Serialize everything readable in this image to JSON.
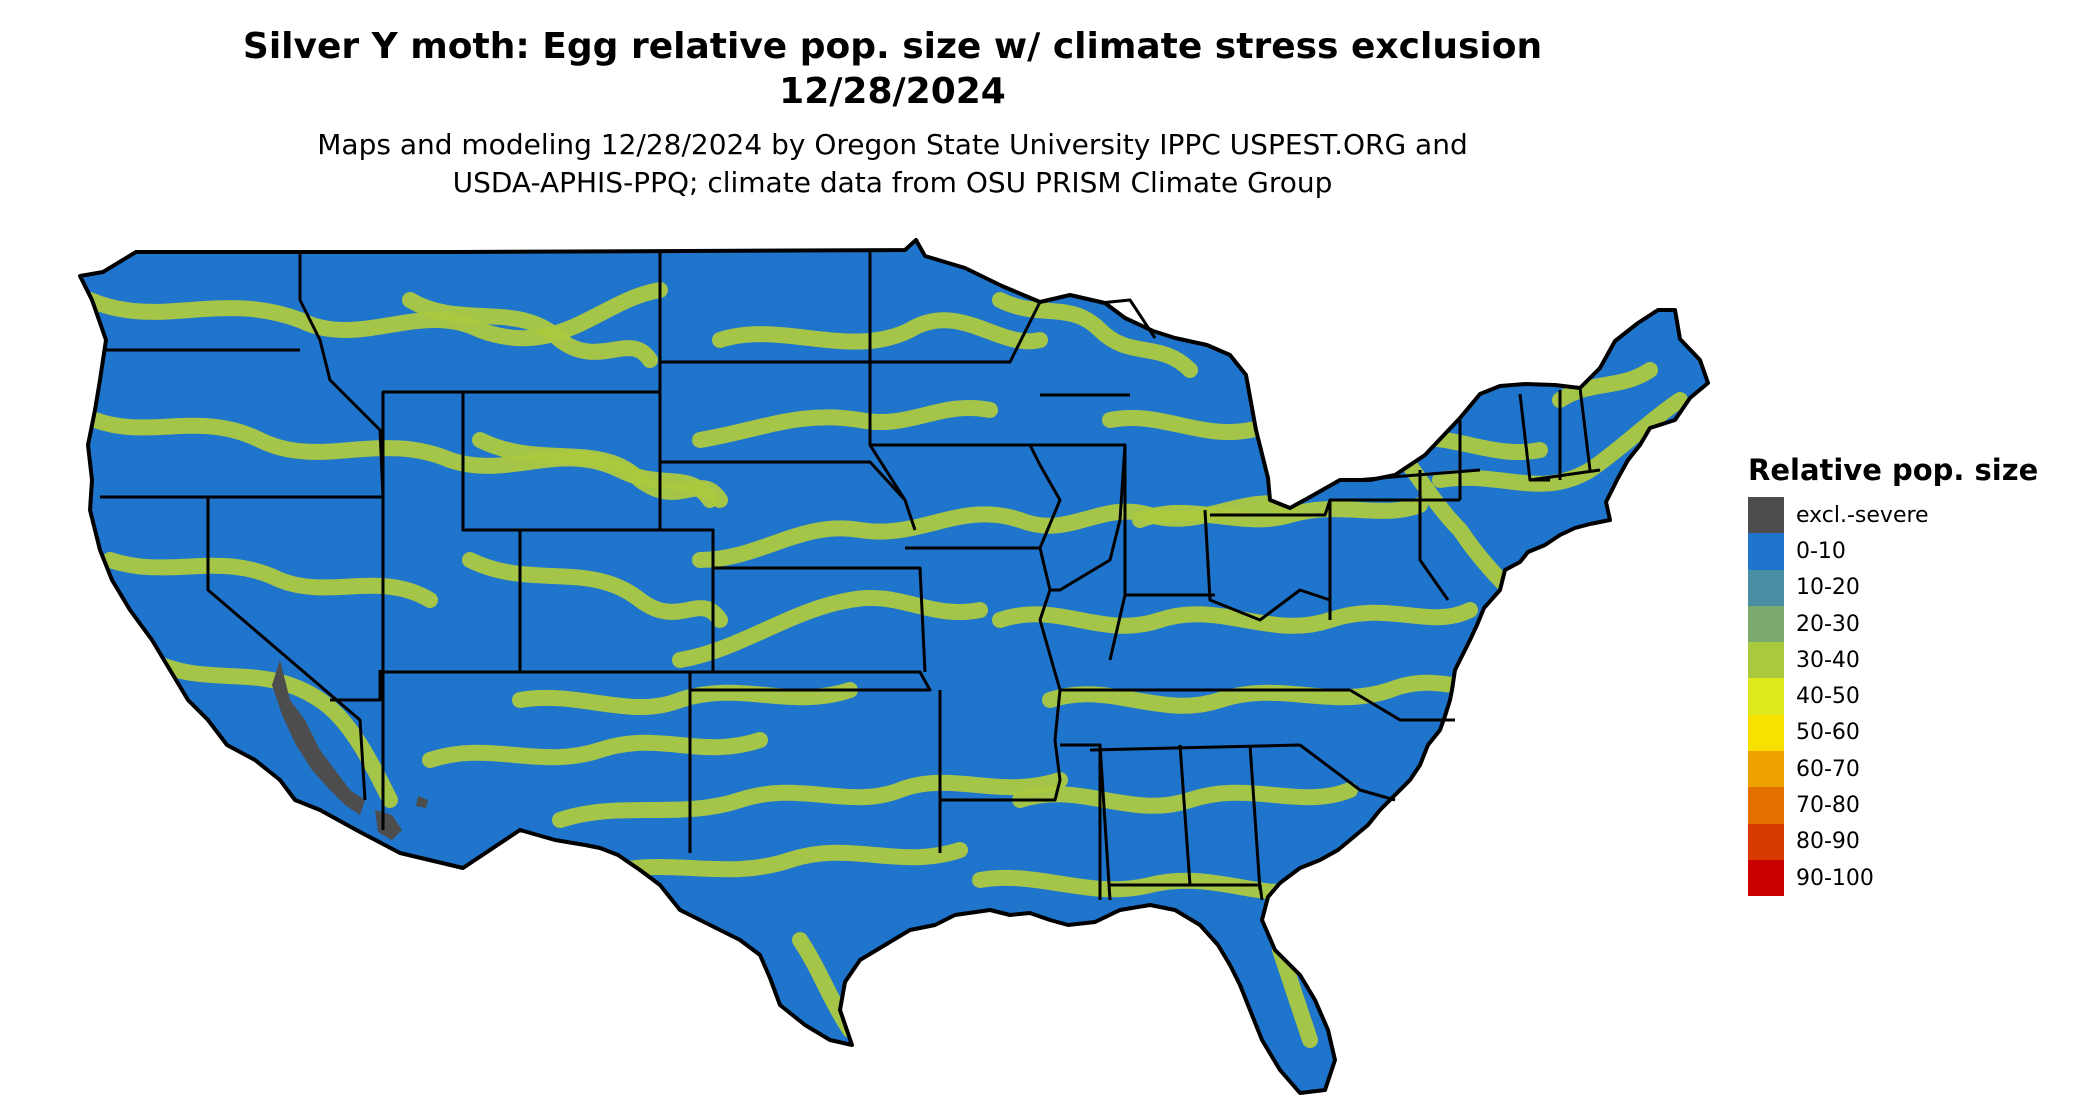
{
  "header": {
    "title_line1": "Silver Y moth: Egg relative pop. size w/ climate stress exclusion",
    "title_line2": "12/28/2024",
    "subtitle_line1": "Maps and modeling 12/28/2024 by Oregon State University IPPC USPEST.ORG and",
    "subtitle_line2": "USDA-APHIS-PPQ; climate data from OSU PRISM Climate Group"
  },
  "map": {
    "region": "Contiguous United States",
    "base_color": "#1f74cc",
    "band_color": "#acc93f",
    "exclusion_color": "#4d4d4d",
    "border_color": "#000000"
  },
  "legend": {
    "title": "Relative pop. size",
    "items": [
      {
        "label": "excl.-severe",
        "color": "#4d4d4d"
      },
      {
        "label": "0-10",
        "color": "#1f74cc"
      },
      {
        "label": "10-20",
        "color": "#4a8ea3"
      },
      {
        "label": "20-30",
        "color": "#7bab6c"
      },
      {
        "label": "30-40",
        "color": "#a9ca3f"
      },
      {
        "label": "40-50",
        "color": "#dfe81c"
      },
      {
        "label": "50-60",
        "color": "#f8e100"
      },
      {
        "label": "60-70",
        "color": "#eda200"
      },
      {
        "label": "70-80",
        "color": "#e47000"
      },
      {
        "label": "80-90",
        "color": "#d83a00"
      },
      {
        "label": "90-100",
        "color": "#cc0000"
      }
    ]
  }
}
